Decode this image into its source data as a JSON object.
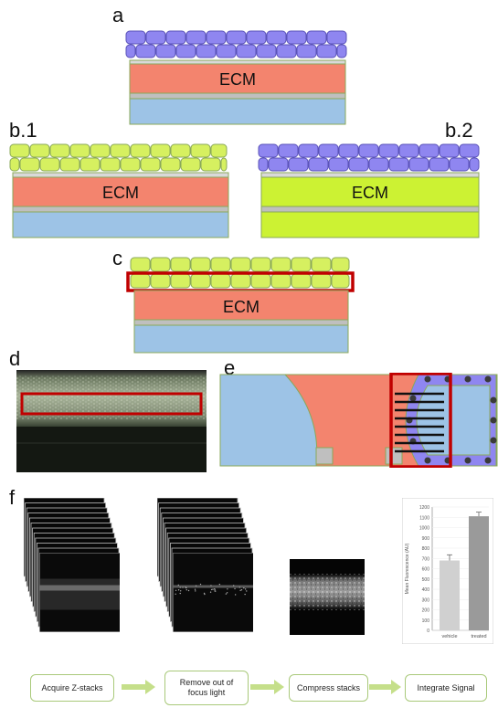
{
  "panels": {
    "a": {
      "label": "a",
      "ecm": "ECM"
    },
    "b1": {
      "label": "b.1",
      "ecm": "ECM"
    },
    "b2": {
      "label": "b.2",
      "ecm": "ECM"
    },
    "c": {
      "label": "c",
      "ecm": "ECM"
    },
    "d": {
      "label": "d"
    },
    "e": {
      "label": "e"
    },
    "f": {
      "label": "f"
    }
  },
  "colors": {
    "cell_blue": "#8f86f0",
    "cell_green": "#d6f060",
    "ecm_red": "#f3846e",
    "ecm_green": "#ccf233",
    "substrate_blue": "#9dc3e6",
    "membrane_gray": "#bfbfbf",
    "highlight_red": "#c00000",
    "arrow_green": "#c5df8a"
  },
  "workflow": {
    "steps": [
      "Acquire Z-stacks",
      "Remove out of\nfocus light",
      "Compress stacks",
      "Integrate Signal"
    ]
  },
  "chart_data": {
    "type": "bar",
    "categories": [
      "vehicle",
      "treated"
    ],
    "values": [
      680,
      1110
    ],
    "errors": [
      55,
      40
    ],
    "ylabel": "Mean Fluorescence (AU)",
    "ylim": [
      0,
      1200
    ],
    "yticks": [
      0,
      100,
      200,
      300,
      400,
      500,
      600,
      700,
      800,
      900,
      1000,
      1100,
      1200
    ],
    "bar_colors": [
      "#d0d0d0",
      "#9a9a9a"
    ]
  }
}
